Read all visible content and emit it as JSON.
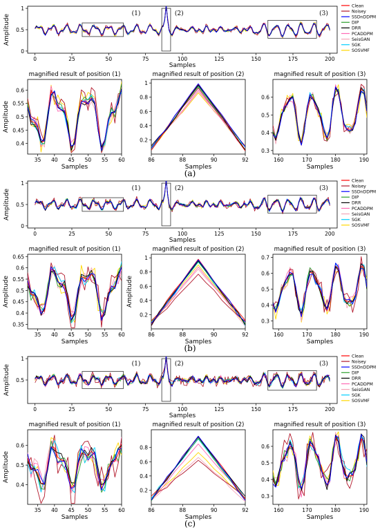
{
  "series_names": [
    "Clean",
    "Noisey",
    "SSDnDDPM",
    "DIP",
    "DRR",
    "PCADDPM",
    "SeisGAN",
    "SGK",
    "SOSVMF"
  ],
  "series_colors": [
    "#ff0000",
    "#b2182b",
    "#0000ff",
    "#2ca02c",
    "#000000",
    "#ff69b4",
    "#f4a6b8",
    "#00cfff",
    "#ffd700"
  ],
  "axis_text": {
    "xlabel": "Samples",
    "ylabel": "Amplitude",
    "region_1": "(1)",
    "region_2": "(2)",
    "region_3": "(3)",
    "zoom_title_1": "magnified result of position (1)",
    "zoom_title_2": "magnified result of position (2)",
    "zoom_title_3": "magnified result of position (3)"
  },
  "panel_labels": [
    "(a)",
    "(b)",
    "(c)"
  ],
  "chart_data": [
    {
      "type": "line",
      "panel": "(a)",
      "role": "overview",
      "xlabel": "Samples",
      "ylabel": "Amplitude",
      "xlim": [
        -5,
        205
      ],
      "ylim": [
        -0.05,
        1.05
      ],
      "xticks": [
        0,
        25,
        50,
        75,
        100,
        125,
        150,
        175,
        200
      ],
      "yticks": [
        0.0,
        0.5,
        1.0
      ],
      "highlight_regions": [
        {
          "label": "(1)",
          "x": [
            32,
            60
          ],
          "y": [
            0.34,
            0.66
          ]
        },
        {
          "label": "(2)",
          "x": [
            86,
            92
          ],
          "y": [
            0.0,
            1.0
          ]
        },
        {
          "label": "(3)",
          "x": [
            158,
            191
          ],
          "y": [
            0.3,
            0.72
          ]
        }
      ]
    },
    {
      "type": "line",
      "panel": "(a)",
      "role": "zoom",
      "title": "magnified result of position (1)",
      "xlabel": "Samples",
      "ylabel": "Amplitude",
      "xlim": [
        32,
        60
      ],
      "ylim": [
        0.36,
        0.64
      ],
      "xticks": [
        35,
        40,
        45,
        50,
        55,
        60
      ],
      "yticks": [
        0.4,
        0.45,
        0.5,
        0.55,
        0.6
      ]
    },
    {
      "type": "line",
      "panel": "(a)",
      "role": "zoom",
      "title": "magnified result of position (2)",
      "xlabel": "Samples",
      "xlim": [
        86,
        92
      ],
      "ylim": [
        0.0,
        1.05
      ],
      "xticks": [
        86,
        88,
        90,
        92
      ],
      "yticks": [
        0.2,
        0.4,
        0.6,
        0.8,
        1.0
      ],
      "peak_x": 89,
      "peak_values": [
        0.98,
        0.93,
        0.99,
        0.95,
        0.97,
        0.9,
        0.88,
        0.96,
        0.86
      ]
    },
    {
      "type": "line",
      "panel": "(a)",
      "role": "zoom",
      "title": "magnified result of position (3)",
      "xlabel": "Samples",
      "xlim": [
        158,
        191
      ],
      "ylim": [
        0.28,
        0.7
      ],
      "xticks": [
        160,
        170,
        180,
        190
      ],
      "yticks": [
        0.3,
        0.4,
        0.5,
        0.6
      ]
    },
    {
      "type": "line",
      "panel": "(b)",
      "role": "overview",
      "xlabel": "Samples",
      "ylabel": "Amplitude",
      "xlim": [
        -5,
        205
      ],
      "ylim": [
        -0.05,
        1.05
      ],
      "xticks": [
        0,
        25,
        50,
        75,
        100,
        125,
        150,
        175,
        200
      ],
      "yticks": [
        0.0,
        0.5,
        1.0
      ],
      "highlight_regions": [
        {
          "label": "(1)",
          "x": [
            32,
            60
          ],
          "y": [
            0.34,
            0.66
          ]
        },
        {
          "label": "(2)",
          "x": [
            86,
            92
          ],
          "y": [
            0.0,
            1.0
          ]
        },
        {
          "label": "(3)",
          "x": [
            158,
            191
          ],
          "y": [
            0.3,
            0.72
          ]
        }
      ]
    },
    {
      "type": "line",
      "panel": "(b)",
      "role": "zoom",
      "title": "magnified result of position (1)",
      "xlabel": "Samples",
      "ylabel": "Amplitude",
      "xlim": [
        32,
        60
      ],
      "ylim": [
        0.33,
        0.66
      ],
      "xticks": [
        35,
        40,
        45,
        50,
        55,
        60
      ],
      "yticks": [
        0.35,
        0.4,
        0.45,
        0.5,
        0.55,
        0.6,
        0.65
      ]
    },
    {
      "type": "line",
      "panel": "(b)",
      "role": "zoom",
      "title": "magnified result of position (2)",
      "xlabel": "Samples",
      "ylabel": "Amplitude",
      "xlim": [
        86,
        92
      ],
      "ylim": [
        0.0,
        1.05
      ],
      "xticks": [
        86,
        88,
        90,
        92
      ],
      "yticks": [
        0.2,
        0.4,
        0.6,
        0.8,
        1.0
      ],
      "peak_x": 89,
      "peak_values": [
        0.98,
        0.77,
        0.97,
        0.95,
        0.96,
        0.87,
        0.84,
        0.94,
        0.9
      ]
    },
    {
      "type": "line",
      "panel": "(b)",
      "role": "zoom",
      "title": "magnified result of position (3)",
      "xlabel": "Samples",
      "xlim": [
        158,
        191
      ],
      "ylim": [
        0.25,
        0.72
      ],
      "xticks": [
        160,
        170,
        180,
        190
      ],
      "yticks": [
        0.3,
        0.4,
        0.5,
        0.6,
        0.7
      ]
    },
    {
      "type": "line",
      "panel": "(c)",
      "role": "overview",
      "xlabel": "Samples",
      "ylabel": "Amplitude",
      "xlim": [
        -5,
        205
      ],
      "ylim": [
        -0.05,
        1.05
      ],
      "xticks": [
        0,
        25,
        50,
        75,
        100,
        125,
        150,
        175,
        200
      ],
      "yticks": [
        0.5,
        1.0
      ],
      "highlight_regions": [
        {
          "label": "(1)",
          "x": [
            32,
            60
          ],
          "y": [
            0.3,
            0.7
          ]
        },
        {
          "label": "(2)",
          "x": [
            86,
            92
          ],
          "y": [
            0.0,
            1.0
          ]
        },
        {
          "label": "(3)",
          "x": [
            158,
            191
          ],
          "y": [
            0.26,
            0.72
          ]
        }
      ]
    },
    {
      "type": "line",
      "panel": "(c)",
      "role": "zoom",
      "title": "magnified result of position (1)",
      "xlabel": "Samples",
      "ylabel": "Amplitude",
      "xlim": [
        32,
        60
      ],
      "ylim": [
        0.3,
        0.68
      ],
      "xticks": [
        35,
        40,
        45,
        50,
        55,
        60
      ],
      "yticks": [
        0.4,
        0.5,
        0.6
      ]
    },
    {
      "type": "line",
      "panel": "(c)",
      "role": "zoom",
      "title": "magnified result of position (2)",
      "xlabel": "Samples",
      "xlim": [
        86,
        92
      ],
      "ylim": [
        0.0,
        1.05
      ],
      "xticks": [
        86,
        88,
        90,
        92
      ],
      "yticks": [
        0.2,
        0.4,
        0.6,
        0.8
      ],
      "peak_x": 89,
      "peak_values": [
        0.96,
        0.62,
        0.96,
        0.93,
        0.95,
        0.85,
        0.66,
        0.92,
        0.73
      ]
    },
    {
      "type": "line",
      "panel": "(c)",
      "role": "zoom",
      "title": "magnified result of position (3)",
      "xlabel": "Samples",
      "xlim": [
        158,
        191
      ],
      "ylim": [
        0.25,
        0.7
      ],
      "xticks": [
        160,
        170,
        180,
        190
      ],
      "yticks": [
        0.3,
        0.4,
        0.5,
        0.6
      ]
    }
  ]
}
